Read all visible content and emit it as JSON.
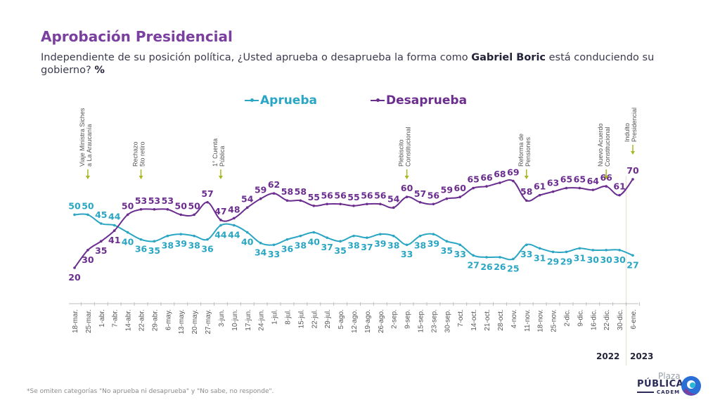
{
  "header": {
    "title": "Aprobación Presidencial",
    "subtitle_pre": "Independiente de su posición política, ¿Usted aprueba o desaprueba la forma como ",
    "subtitle_bold": "Gabriel Boric",
    "subtitle_post": " está conduciendo su gobierno? ",
    "subtitle_unit": "%"
  },
  "footnote": "*Se omiten categorías \"No aprueba ni desaprueba\" y \"No sabe, no responde\".",
  "logo": {
    "line1": "Plaza",
    "line2": "PÚBLICA",
    "line3": "CADEM"
  },
  "colors": {
    "aprueba": "#2aa6c4",
    "desaprueba": "#6b2d8e",
    "event_arrow": "#a8b820",
    "title": "#7b3fa0"
  },
  "chart_data": {
    "type": "line",
    "title": "Aprobación Presidencial",
    "xlabel": "",
    "ylabel": "%",
    "grid": false,
    "legend_position": "top-center",
    "ylim": [
      15,
      75
    ],
    "x": [
      "18-mar.",
      "25-mar.",
      "1-abr.",
      "7-abr.",
      "14-abr.",
      "22-abr.",
      "29-abr.",
      "6-may.",
      "13-may.",
      "20-may.",
      "27-may.",
      "3-jun.",
      "10-jun.",
      "17-jun.",
      "24-jun.",
      "1-jul.",
      "8-jul.",
      "15-jul.",
      "22-jul.",
      "29-jul.",
      "5-ago.",
      "12-ago.",
      "19-ago.",
      "26-ago.",
      "2-sep.",
      "9-sep.",
      "15-sep.",
      "23-sep.",
      "30-sep.",
      "7-oct.",
      "14-oct.",
      "21-oct.",
      "28-oct.",
      "4-nov.",
      "11-nov.",
      "18-nov.",
      "25-nov.",
      "2-dic.",
      "9-dic.",
      "16-dic.",
      "22-dic.",
      "30-dic.",
      "6-ene."
    ],
    "series": [
      {
        "name": "Aprueba",
        "color": "#2aa6c4",
        "values": [
          50,
          50,
          45,
          44,
          40,
          36,
          35,
          38,
          39,
          38,
          36,
          44,
          44,
          40,
          34,
          33,
          36,
          38,
          40,
          37,
          35,
          38,
          37,
          39,
          38,
          33,
          38,
          39,
          35,
          33,
          27,
          26,
          26,
          25,
          33,
          31,
          29,
          29,
          31,
          30,
          30,
          30,
          27
        ]
      },
      {
        "name": "Desaprueba",
        "color": "#6b2d8e",
        "values": [
          20,
          30,
          35,
          41,
          50,
          53,
          53,
          53,
          50,
          50,
          57,
          47,
          48,
          54,
          59,
          62,
          58,
          58,
          55,
          56,
          56,
          55,
          56,
          56,
          54,
          60,
          57,
          56,
          59,
          60,
          65,
          66,
          68,
          69,
          58,
          61,
          63,
          65,
          65,
          64,
          66,
          61,
          70
        ]
      }
    ],
    "annotations": [
      {
        "at": "25-mar.",
        "lines": [
          "Viaje Ministra Siches",
          "a La Araucanía"
        ]
      },
      {
        "at": "22-abr.",
        "lines": [
          "Rechazo",
          "5to retiro"
        ]
      },
      {
        "at": "3-jun.",
        "lines": [
          "1° Cuenta",
          "Pública"
        ]
      },
      {
        "at": "9-sep.",
        "lines": [
          "Plebiscito",
          "Constitucional"
        ]
      },
      {
        "at": "11-nov.",
        "lines": [
          "Reforma de",
          "Pensiones"
        ]
      },
      {
        "at": "22-dic.",
        "lines": [
          "Nuevo Acuerdo",
          "Constitucional"
        ]
      },
      {
        "at": "6-ene.",
        "lines": [
          "Indulto",
          "Presidencial"
        ]
      }
    ],
    "year_labels": [
      {
        "label": "2022",
        "after": "30-dic."
      },
      {
        "label": "2023",
        "at": "6-ene."
      }
    ]
  }
}
